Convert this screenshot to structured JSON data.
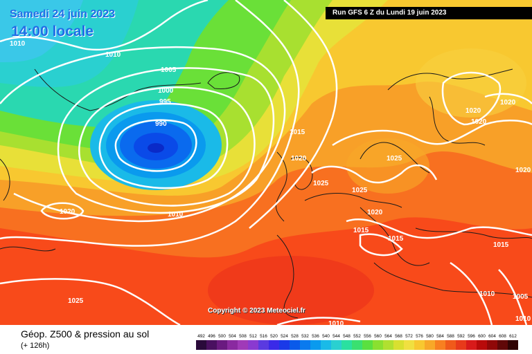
{
  "header": {
    "date": "Samedi 24 juin 2023",
    "time": "14:00 locale",
    "run": "Run GFS 6 Z du Lundi 19 juin 2023"
  },
  "copyright": "Copyright © 2023 Meteociel.fr",
  "footer": {
    "title": "Géop. Z500 & pression au sol",
    "subtitle": "(+ 126h)"
  },
  "legend": {
    "values": [
      "492",
      "496",
      "500",
      "504",
      "508",
      "512",
      "516",
      "520",
      "524",
      "528",
      "532",
      "536",
      "540",
      "544",
      "548",
      "552",
      "556",
      "560",
      "564",
      "568",
      "572",
      "576",
      "580",
      "584",
      "588",
      "592",
      "596",
      "600",
      "604",
      "608",
      "612"
    ],
    "colors": [
      "#2a0a3a",
      "#4a1060",
      "#6a1a80",
      "#8a2aa0",
      "#a03ab8",
      "#8a3ad0",
      "#5a3ae0",
      "#3a2ae8",
      "#1a3ae8",
      "#0a5aea",
      "#0a7aee",
      "#0a9aee",
      "#1abae8",
      "#2ad0d0",
      "#2ae0a0",
      "#3ae070",
      "#5ae040",
      "#8ae030",
      "#b0e030",
      "#d8e030",
      "#f0e040",
      "#f8c830",
      "#f8a828",
      "#f88020",
      "#f05a1a",
      "#e83a1a",
      "#d81a1a",
      "#b80a0a",
      "#900808",
      "#600808",
      "#300404"
    ]
  },
  "isobars": [
    {
      "label": "1010"
    },
    {
      "label": "1010"
    },
    {
      "label": "1005"
    },
    {
      "label": "1000"
    },
    {
      "label": "995"
    },
    {
      "label": "990"
    },
    {
      "label": "1015"
    },
    {
      "label": "1020"
    },
    {
      "label": "1025"
    },
    {
      "label": "1025"
    },
    {
      "label": "1025"
    },
    {
      "label": "1020"
    },
    {
      "label": "1020"
    },
    {
      "label": "1020"
    },
    {
      "label": "1020"
    },
    {
      "label": "1015"
    },
    {
      "label": "1015"
    },
    {
      "label": "1015"
    },
    {
      "label": "1010"
    },
    {
      "label": "1020"
    },
    {
      "label": "1025"
    },
    {
      "label": "1010"
    },
    {
      "label": "1010"
    },
    {
      "label": "1005"
    },
    {
      "label": "1010"
    },
    {
      "label": "1020"
    }
  ]
}
